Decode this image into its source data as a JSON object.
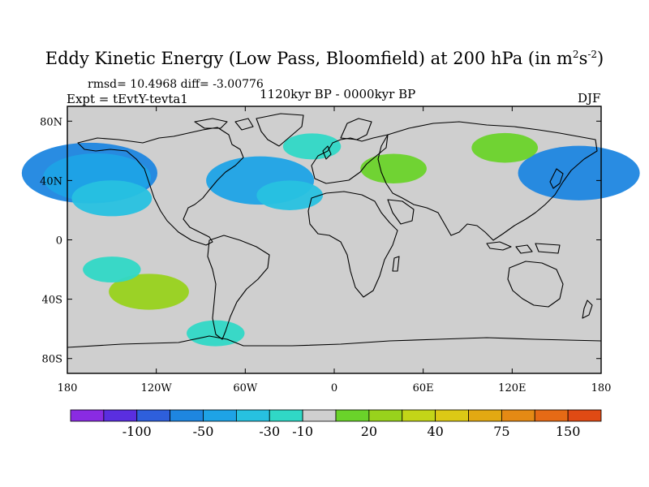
{
  "chart_data": {
    "type": "heatmap",
    "title": "Eddy Kinetic Energy (Low Pass, Bloomfield) at 200 hPa (in m",
    "title_unit_sup1": "2",
    "title_unit_s": "s",
    "title_unit_sup2": "-2",
    "title_close": ")",
    "stats_label": "rmsd= 10.4968 diff= -3.00776",
    "experiment_label": "Expt = tEvtY-tevta1",
    "period_label": "1120kyr BP - 0000kyr BP",
    "season_label": "DJF",
    "x_ticks": [
      "180",
      "120W",
      "60W",
      "0",
      "60E",
      "120E",
      "180"
    ],
    "y_ticks": [
      "80N",
      "40N",
      "0",
      "40S",
      "80S"
    ],
    "xlim": [
      -180,
      180
    ],
    "ylim": [
      -90,
      90
    ],
    "colorbar": {
      "colors": [
        "#8a2be2",
        "#5a2ee0",
        "#2e5fdc",
        "#1e86e0",
        "#1ea3e6",
        "#27c1e0",
        "#30d8c6",
        "#cfcfcf",
        "#6ad32a",
        "#98d21c",
        "#c3d518",
        "#dcc915",
        "#e2a912",
        "#e58a14",
        "#e66a15",
        "#e04a14"
      ],
      "labels": [
        "-100",
        "-50",
        "-30",
        "-10",
        "20",
        "40",
        "75",
        "150"
      ]
    },
    "anomalies": [
      {
        "lat": 45,
        "lon": -165,
        "value": -40
      },
      {
        "lat": 42,
        "lon": -160,
        "value": -30
      },
      {
        "lat": 28,
        "lon": -150,
        "value": -20
      },
      {
        "lat": 40,
        "lon": -50,
        "value": -30
      },
      {
        "lat": 30,
        "lon": -30,
        "value": -15
      },
      {
        "lat": 45,
        "lon": 165,
        "value": -35
      },
      {
        "lat": 48,
        "lon": 40,
        "value": 15
      },
      {
        "lat": 62,
        "lon": 115,
        "value": 15
      },
      {
        "lat": -35,
        "lon": -125,
        "value": 20
      },
      {
        "lat": -20,
        "lon": -150,
        "value": -12
      },
      {
        "lat": -63,
        "lon": -80,
        "value": -12
      },
      {
        "lat": 63,
        "lon": -15,
        "value": -12
      }
    ]
  }
}
